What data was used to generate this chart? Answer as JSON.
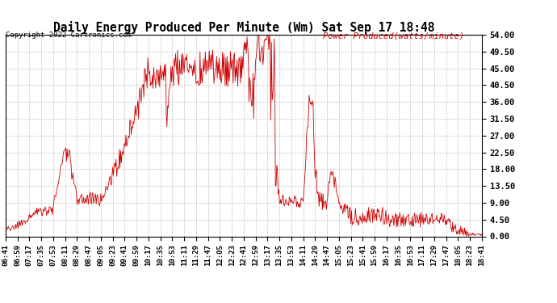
{
  "title": "Daily Energy Produced Per Minute (Wm) Sat Sep 17 18:48",
  "copyright": "Copyright 2022 Cartronics.com",
  "legend_label": "Power Produced(watts/minute)",
  "legend_color": "#cc0000",
  "line_color": "#cc0000",
  "background_color": "#ffffff",
  "grid_color": "#b0b0b0",
  "ylim": [
    0,
    54
  ],
  "yticks": [
    0.0,
    4.5,
    9.0,
    13.5,
    18.0,
    22.5,
    27.0,
    31.5,
    36.0,
    40.5,
    45.0,
    49.5,
    54.0
  ],
  "ytick_labels": [
    "0.00",
    "4.50",
    "9.00",
    "13.50",
    "18.00",
    "22.50",
    "27.00",
    "31.50",
    "36.00",
    "40.50",
    "45.00",
    "49.50",
    "54.00"
  ],
  "x_tick_labels": [
    "06:41",
    "06:59",
    "07:17",
    "07:35",
    "07:53",
    "08:11",
    "08:29",
    "08:47",
    "09:05",
    "09:23",
    "09:41",
    "09:59",
    "10:17",
    "10:35",
    "10:53",
    "11:11",
    "11:29",
    "11:47",
    "12:05",
    "12:23",
    "12:41",
    "12:59",
    "13:17",
    "13:35",
    "13:53",
    "14:11",
    "14:29",
    "14:47",
    "15:05",
    "15:23",
    "15:41",
    "15:59",
    "16:17",
    "16:35",
    "16:53",
    "17:11",
    "17:29",
    "17:47",
    "18:05",
    "18:23",
    "18:41"
  ]
}
